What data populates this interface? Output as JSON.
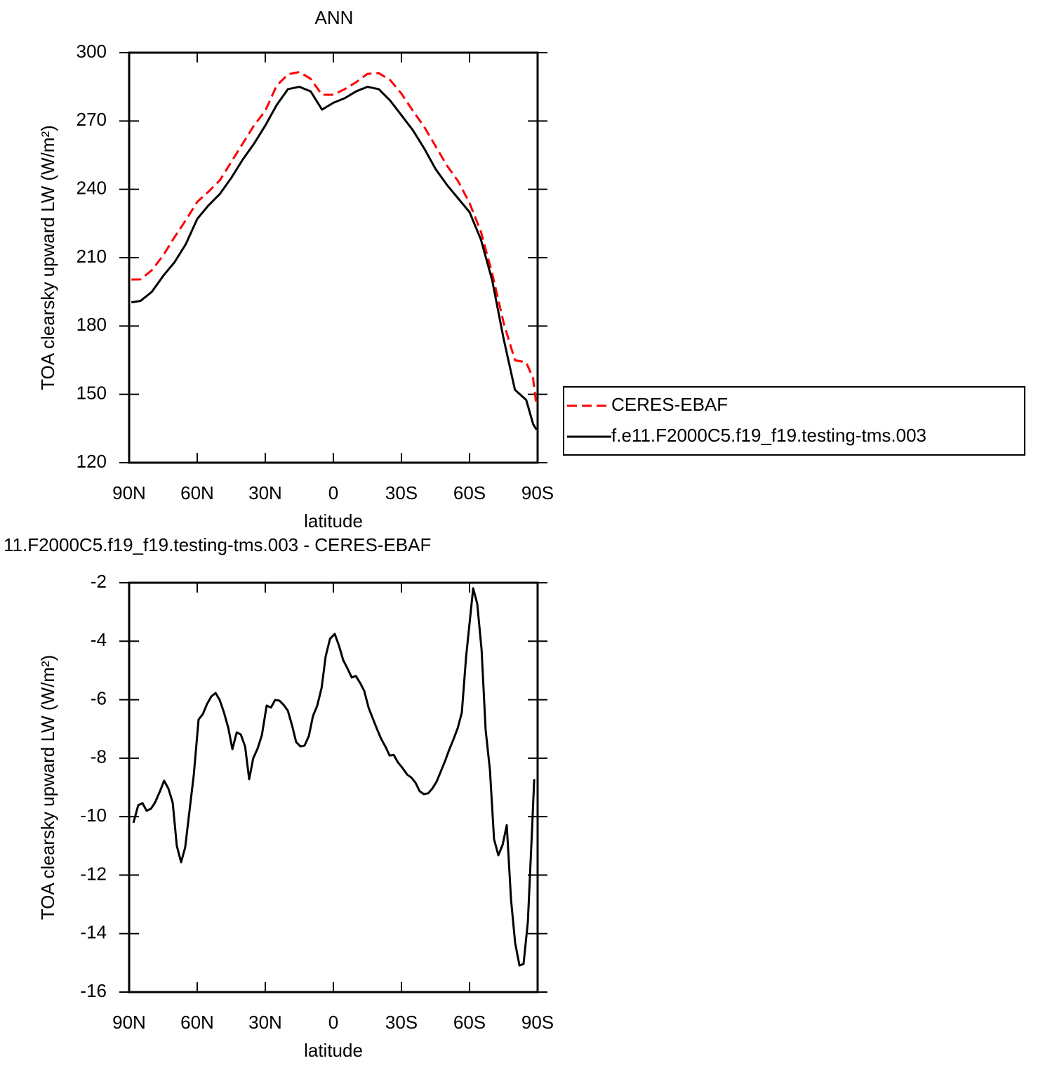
{
  "chart_data": [
    {
      "type": "line",
      "title": "ANN",
      "xlabel": "latitude",
      "ylabel": "TOA clearsky upward LW (W/m²)",
      "x": [
        89,
        85,
        80,
        75,
        70,
        65,
        60,
        55,
        50,
        45,
        40,
        35,
        30,
        25,
        20,
        15,
        10,
        5,
        0,
        -5,
        -10,
        -15,
        -20,
        -25,
        -30,
        -35,
        -40,
        -45,
        -50,
        -55,
        -60,
        -65,
        -70,
        -75,
        -80,
        -85,
        -88,
        -89.5
      ],
      "series": [
        {
          "name": "CERES-EBAF",
          "color": "#ff0000",
          "linestyle": "dashed",
          "values": [
            200.4,
            200.5,
            204.5,
            211,
            219,
            226.5,
            234.5,
            239,
            244,
            252,
            260,
            268,
            274.5,
            285.5,
            290.5,
            291.5,
            288.5,
            281.5,
            281.5,
            284,
            287,
            290.7,
            291,
            288,
            282,
            274.5,
            267.5,
            259,
            250.5,
            243.5,
            234,
            221.5,
            203,
            181.5,
            165,
            164,
            157,
            145
          ]
        },
        {
          "name": "f.e11.F2000C5.f19_f19.testing-tms.003",
          "color": "#000000",
          "linestyle": "solid",
          "values": [
            190.4,
            191,
            195,
            202,
            208,
            216,
            227,
            233,
            238,
            245,
            253,
            260,
            268,
            277,
            284,
            285,
            283,
            275,
            278,
            280,
            283,
            285,
            284,
            279,
            272.5,
            266,
            258,
            249,
            242,
            236,
            230,
            218,
            200,
            174.5,
            152,
            147.5,
            137,
            134.5
          ]
        }
      ],
      "xlim": [
        90,
        -90
      ],
      "xticks": [
        {
          "value": 90,
          "label": "90N"
        },
        {
          "value": 60,
          "label": "60N"
        },
        {
          "value": 30,
          "label": "30N"
        },
        0,
        {
          "value": -30,
          "label": "30S"
        },
        {
          "value": -60,
          "label": "60S"
        },
        {
          "value": -90,
          "label": "90S"
        }
      ],
      "ylim": [
        120,
        300
      ],
      "yticks": [
        120,
        150,
        180,
        210,
        240,
        270,
        300
      ],
      "legend": "outside-right"
    },
    {
      "type": "line",
      "title": "11.F2000C5.f19_f19.testing-tms.003 - CERES-EBAF",
      "xlabel": "latitude",
      "ylabel": "TOA clearsky upward LW (W/m²)",
      "x": [
        88.1,
        86,
        84.1,
        82.3,
        80.4,
        78.6,
        76.4,
        74.6,
        72.7,
        70.8,
        69,
        67.1,
        65.3,
        63.4,
        61.5,
        59.4,
        57.5,
        55.7,
        53.8,
        51.9,
        50.1,
        48.2,
        46.3,
        44.5,
        42.6,
        40.8,
        38.9,
        37.1,
        35.3,
        33.4,
        31.5,
        29.4,
        27.5,
        25.7,
        23.8,
        21.9,
        20.1,
        18.2,
        16.4,
        14.5,
        12.7,
        10.8,
        9,
        7.1,
        5.2,
        3.4,
        1.5,
        -0.6,
        -2.5,
        -4.3,
        -6.2,
        -8.1,
        -9.9,
        -11.8,
        -13.6,
        -15.5,
        -17.3,
        -19.2,
        -21,
        -22.9,
        -24.8,
        -26.6,
        -28.5,
        -30.3,
        -32.5,
        -34.3,
        -36.2,
        -38,
        -39.9,
        -41.8,
        -43.6,
        -45.5,
        -47.3,
        -49.2,
        -51,
        -52.9,
        -54.8,
        -56.6,
        -58.5,
        -60.1,
        -61.6,
        -63.4,
        -65.3,
        -67.1,
        -69,
        -70.8,
        -72.7,
        -74.6,
        -76.4,
        -78.3,
        -80.1,
        -82,
        -83.8,
        -85.7,
        -87.5,
        -88.5
      ],
      "values": [
        -10.21,
        -9.61,
        -9.54,
        -9.8,
        -9.73,
        -9.52,
        -9.13,
        -8.77,
        -9.04,
        -9.52,
        -11.0,
        -11.56,
        -11.05,
        -9.8,
        -8.56,
        -6.68,
        -6.49,
        -6.15,
        -5.89,
        -5.77,
        -6.01,
        -6.44,
        -6.97,
        -7.69,
        -7.12,
        -7.19,
        -7.6,
        -8.72,
        -8.0,
        -7.67,
        -7.21,
        -6.2,
        -6.27,
        -6.01,
        -6.03,
        -6.18,
        -6.37,
        -6.88,
        -7.45,
        -7.6,
        -7.57,
        -7.24,
        -6.56,
        -6.2,
        -5.6,
        -4.52,
        -3.92,
        -3.75,
        -4.16,
        -4.64,
        -4.93,
        -5.24,
        -5.19,
        -5.43,
        -5.7,
        -6.27,
        -6.63,
        -7.0,
        -7.33,
        -7.6,
        -7.91,
        -7.89,
        -8.15,
        -8.32,
        -8.56,
        -8.66,
        -8.84,
        -9.13,
        -9.23,
        -9.2,
        -9.04,
        -8.8,
        -8.46,
        -8.1,
        -7.72,
        -7.36,
        -6.97,
        -6.44,
        -4.52,
        -3.32,
        -2.19,
        -2.72,
        -4.28,
        -7.04,
        -8.41,
        -10.77,
        -11.32,
        -10.96,
        -10.29,
        -12.85,
        -14.32,
        -15.09,
        -15.04,
        -13.6,
        -10.53,
        -8.72
      ],
      "color": "#000000",
      "linestyle": "solid",
      "xlim": [
        90,
        -90
      ],
      "xticks": [
        {
          "value": 90,
          "label": "90N"
        },
        {
          "value": 60,
          "label": "60N"
        },
        {
          "value": 30,
          "label": "30N"
        },
        0,
        {
          "value": -30,
          "label": "30S"
        },
        {
          "value": -60,
          "label": "60S"
        },
        {
          "value": -90,
          "label": "90S"
        }
      ],
      "ylim": [
        -16,
        -2
      ],
      "yticks": [
        -16,
        -14,
        -12,
        -10,
        -8,
        -6,
        -4,
        -2
      ]
    }
  ]
}
